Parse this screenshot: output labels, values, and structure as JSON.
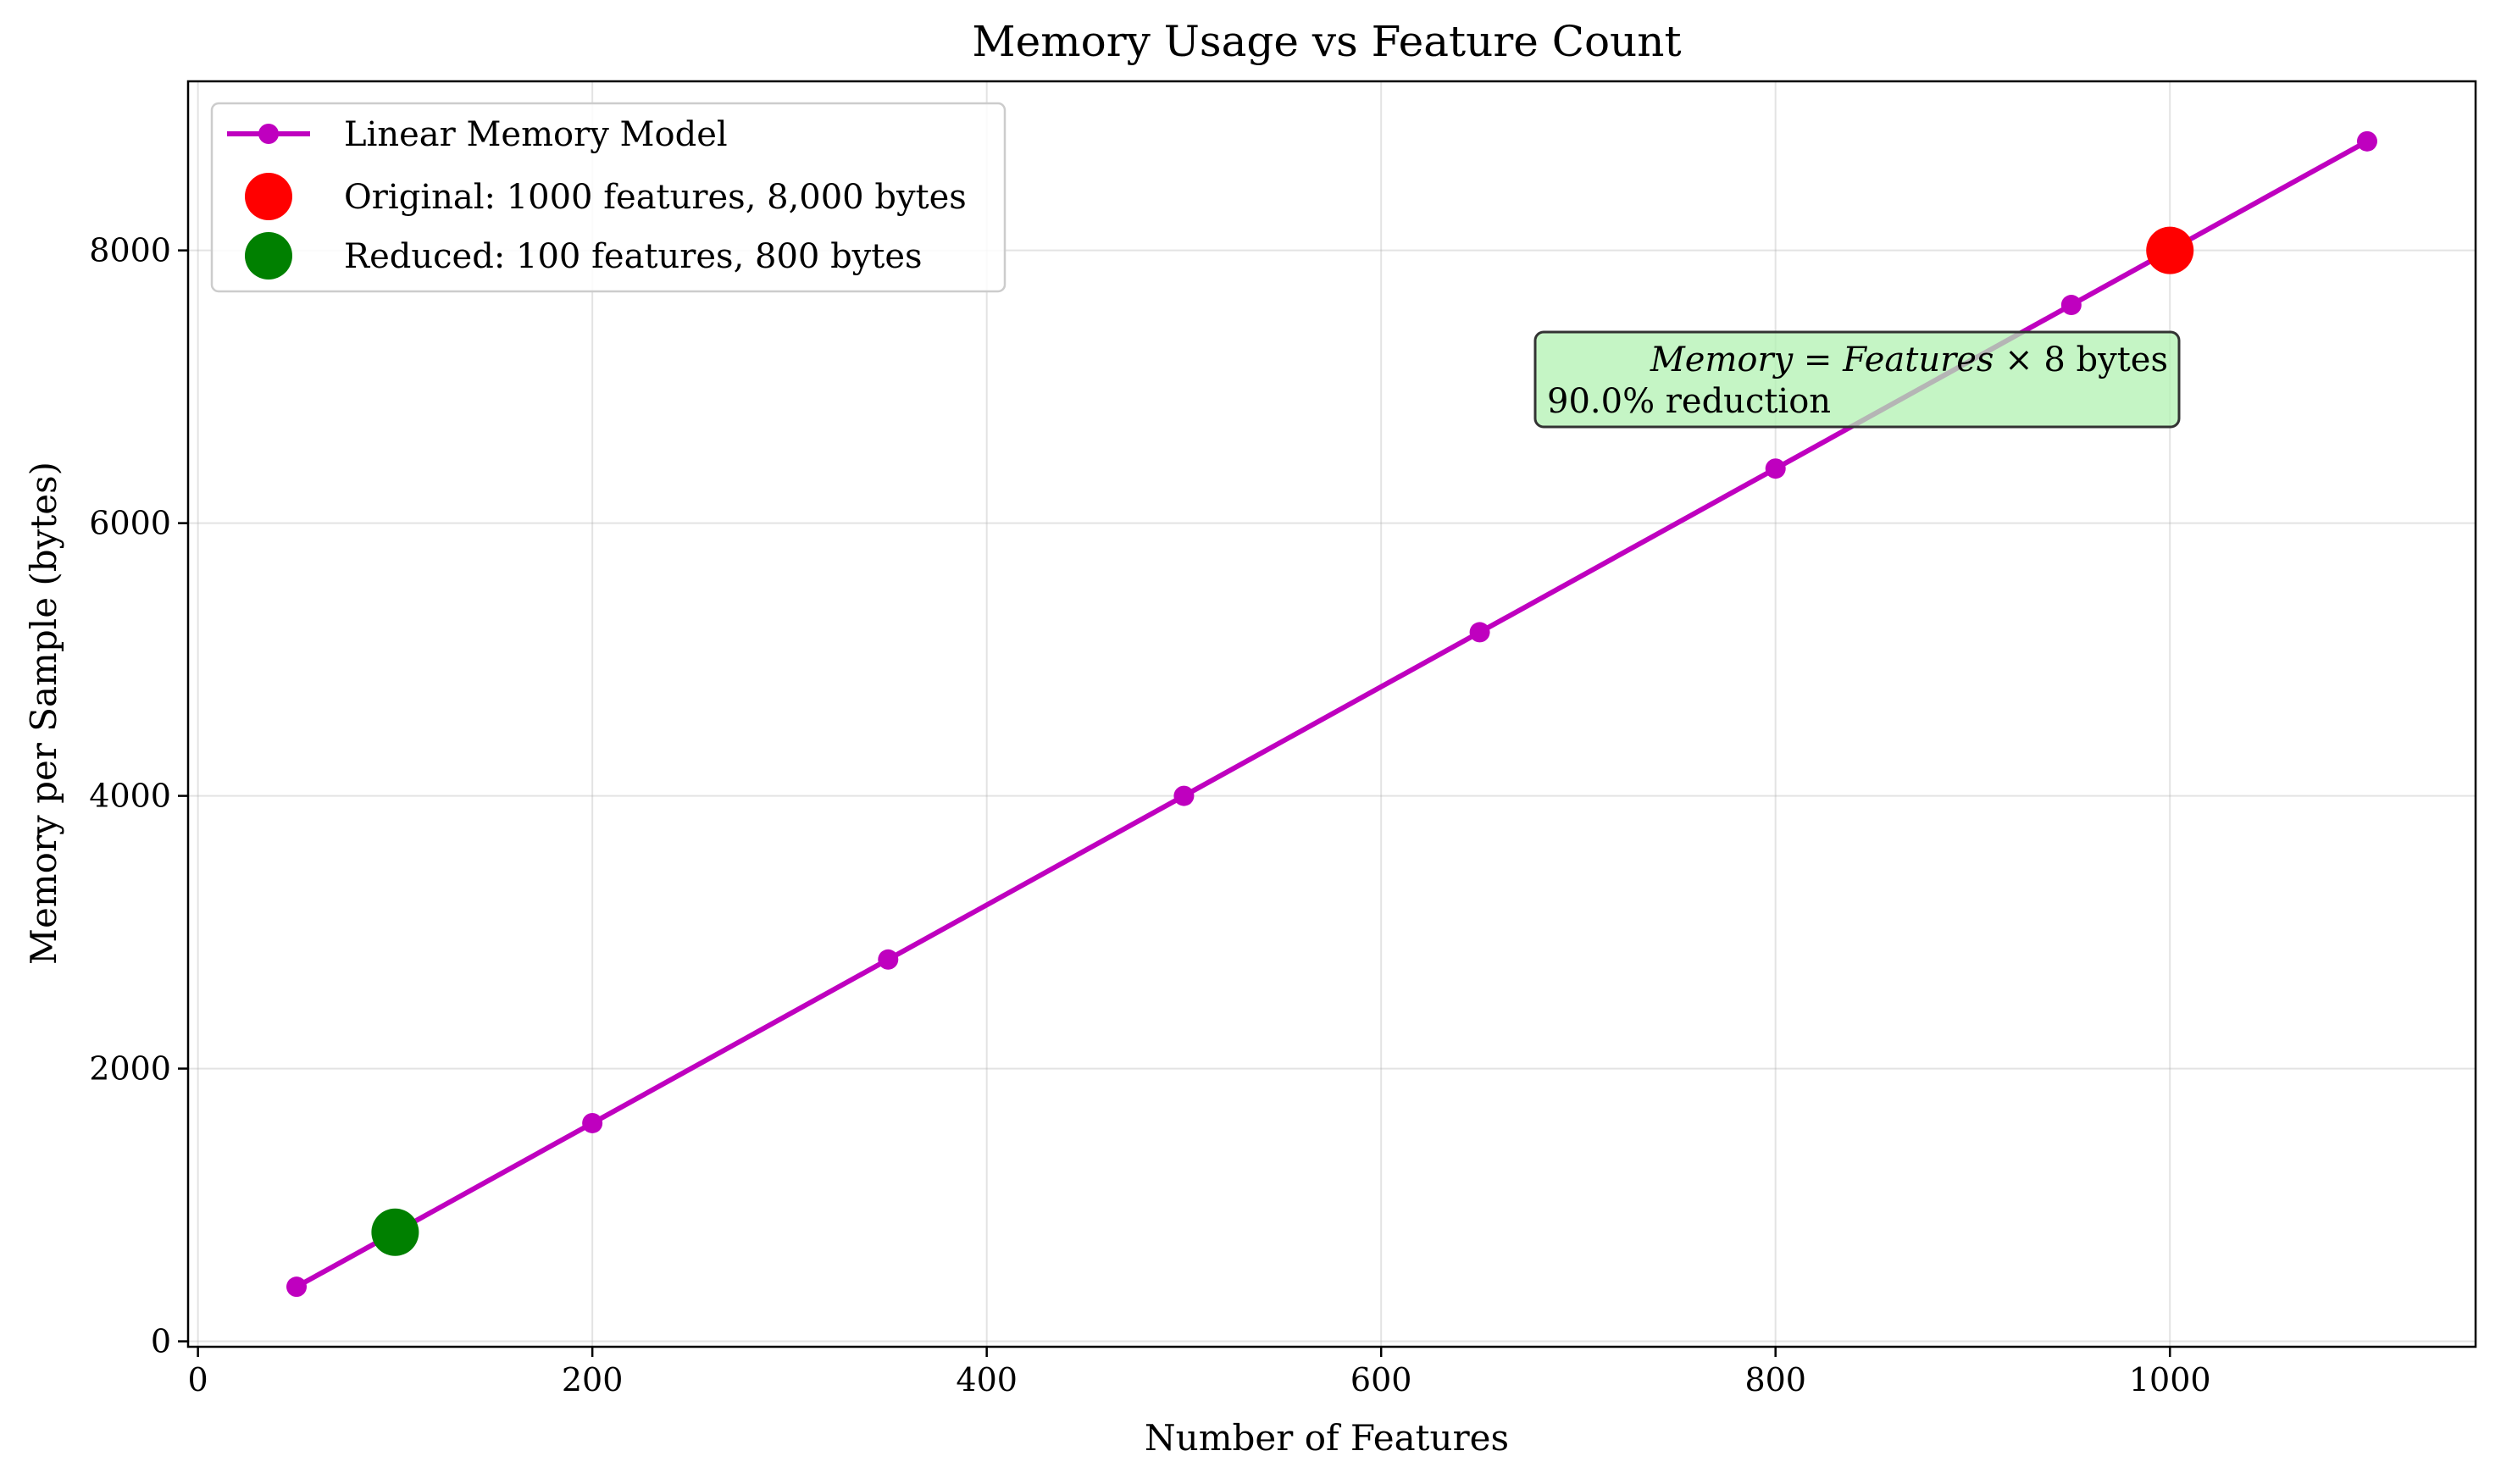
{
  "chart_data": {
    "type": "line",
    "title": "Memory Usage vs Feature Count",
    "xlabel": "Number of Features",
    "ylabel": "Memory per Sample (bytes)",
    "xlim": [
      -5,
      1155
    ],
    "ylim": [
      -40,
      9240
    ],
    "xticks": [
      0,
      200,
      400,
      600,
      800,
      1000
    ],
    "yticks": [
      0,
      2000,
      4000,
      6000,
      8000
    ],
    "grid": true,
    "legend_position": "top-left",
    "series": [
      {
        "name": "Linear Memory Model",
        "color": "#bf00bf",
        "x": [
          50,
          200,
          350,
          500,
          650,
          800,
          950,
          1100
        ],
        "y": [
          400,
          1600,
          2800,
          4000,
          5200,
          6400,
          7600,
          8800
        ]
      }
    ],
    "highlights": [
      {
        "name": "Original: 1000 features, 8,000 bytes",
        "color": "#ff0000",
        "x": 1000,
        "y": 8000
      },
      {
        "name": "Reduced: 100 features, 800 bytes",
        "color": "#008000",
        "x": 100,
        "y": 800
      }
    ],
    "annotation": {
      "formula_italic_left": "Memory",
      "formula_equals": " = ",
      "formula_italic_right": "Features",
      "formula_rest": " × 8 bytes",
      "line2": "90.0% reduction",
      "box_color": "#b2f2b2"
    }
  }
}
